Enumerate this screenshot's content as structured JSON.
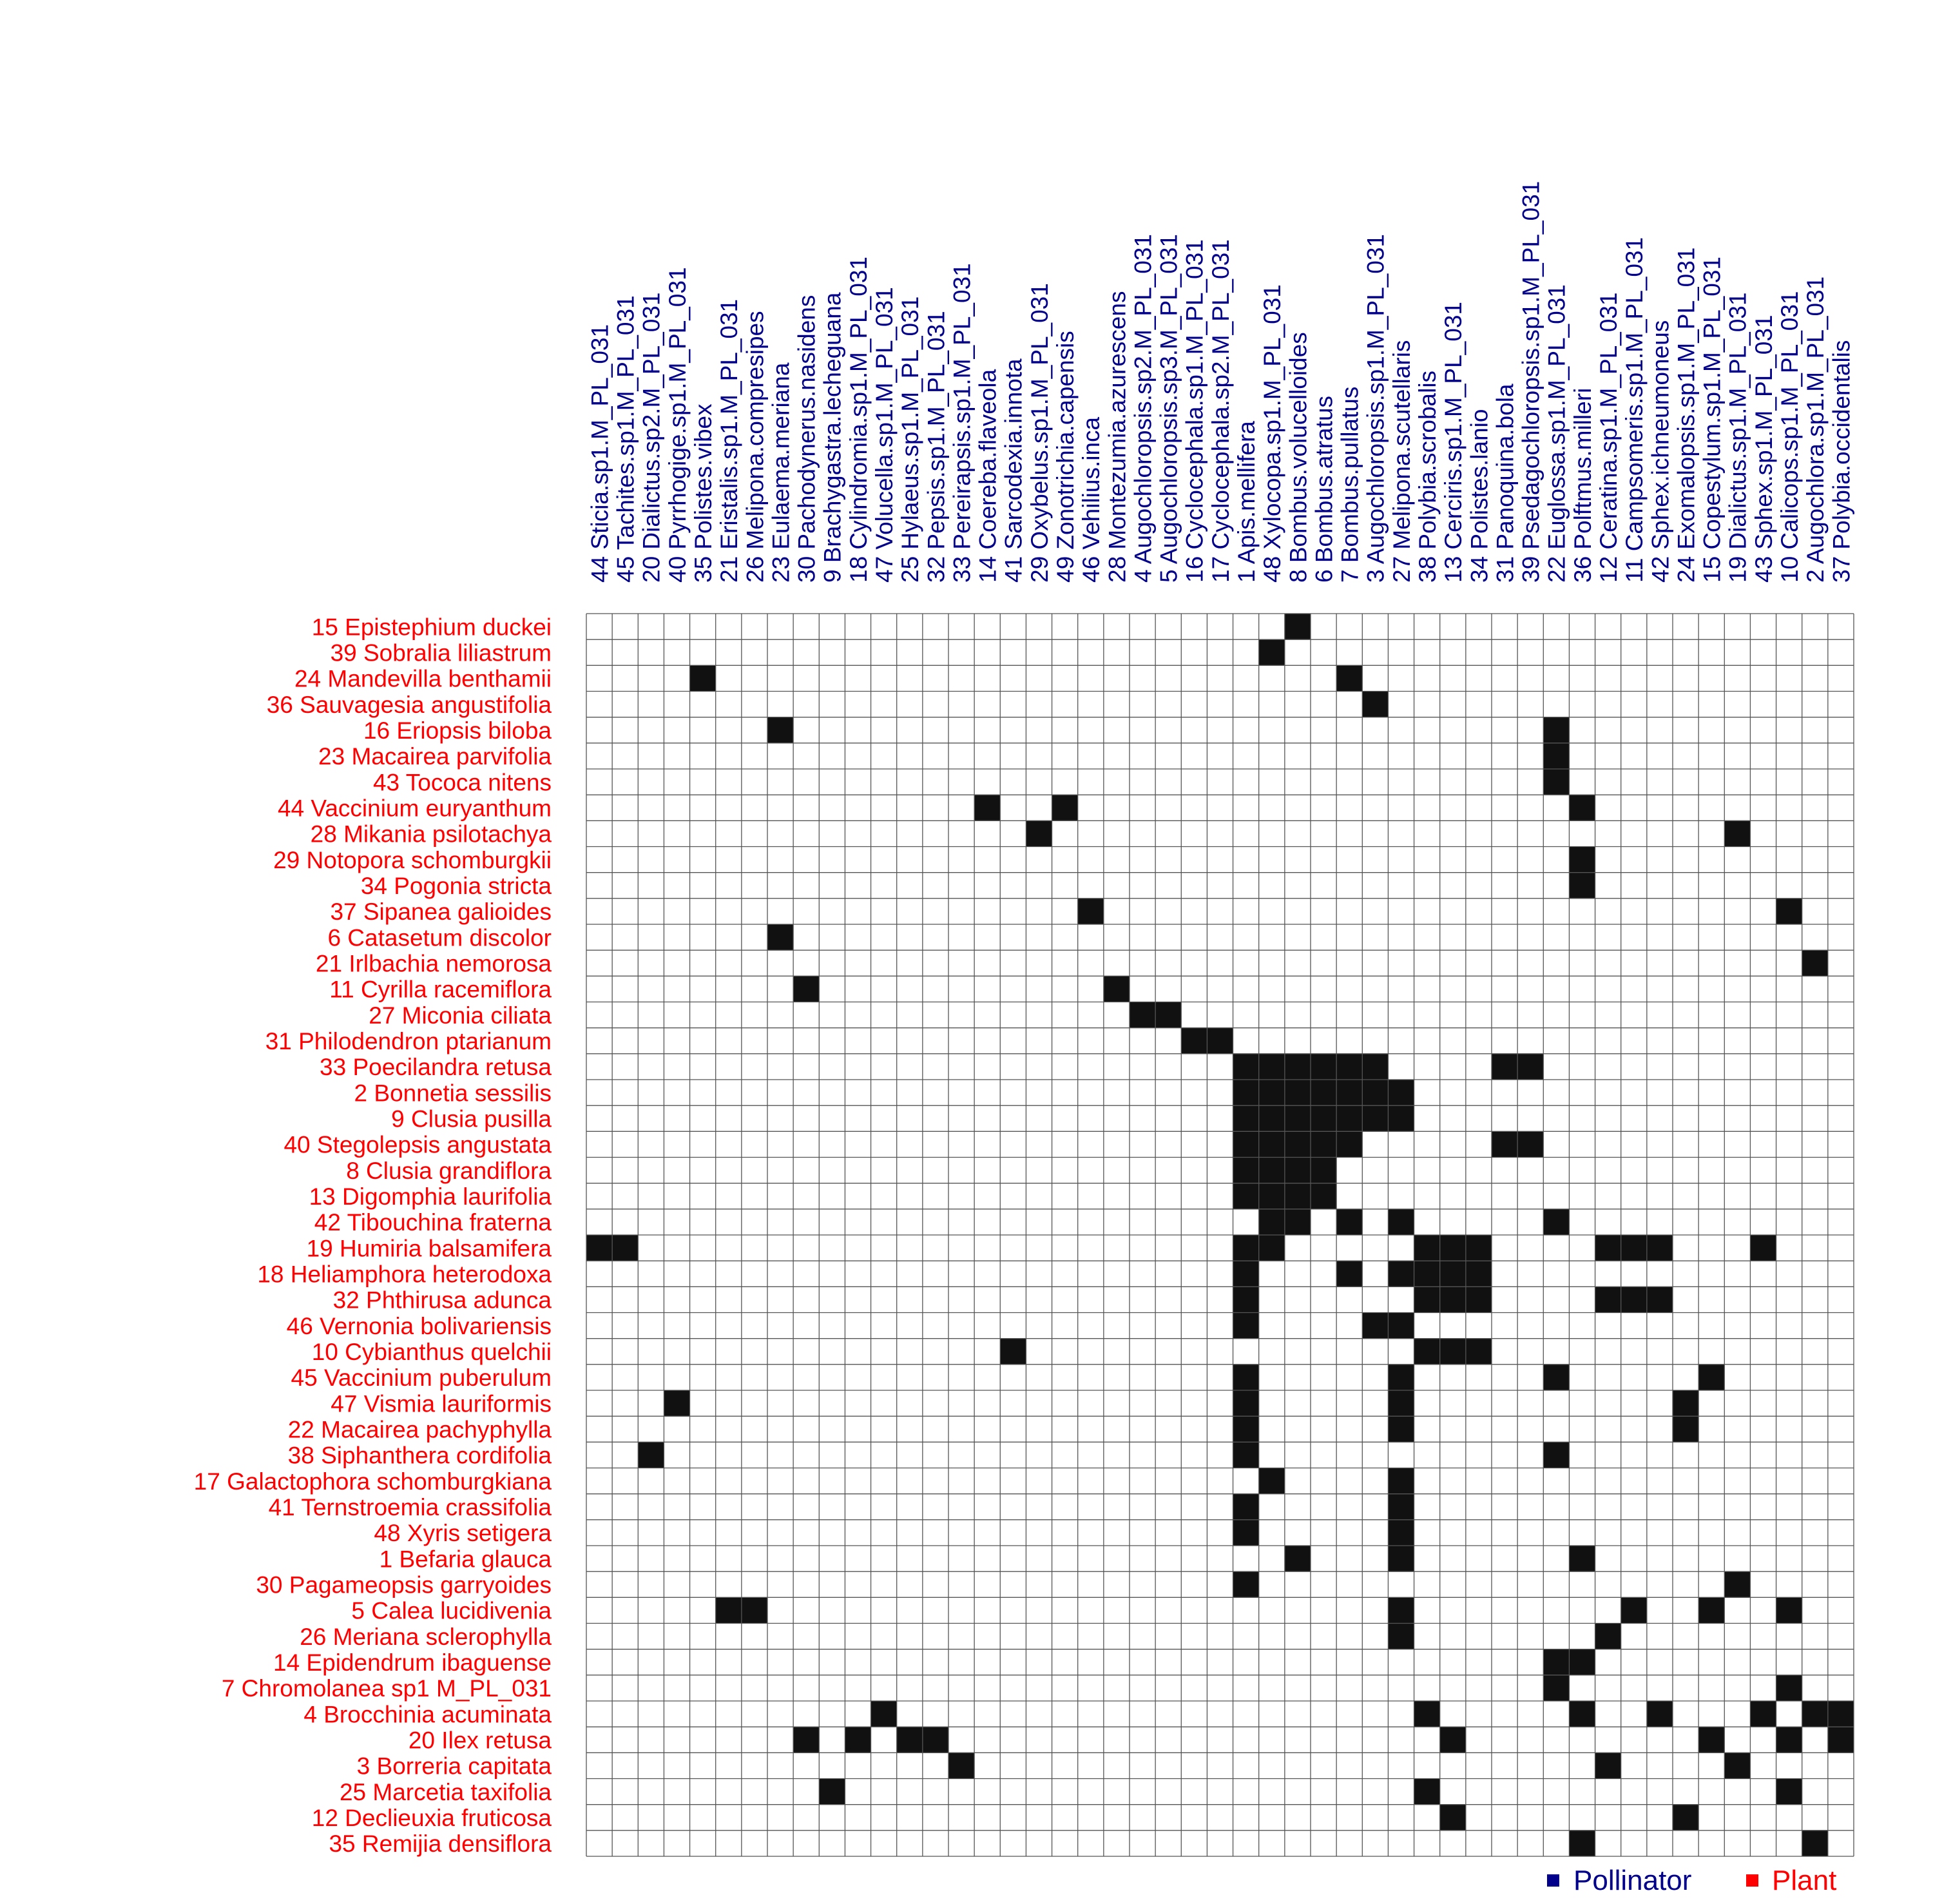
{
  "chart_data": {
    "type": "heatmap",
    "title": "",
    "xlabel": "",
    "ylabel": "",
    "grid": true,
    "legend_position": "bottom-right",
    "colors": {
      "pollinator": "#00008b",
      "plant": "#ff0000",
      "cell_filled": "#111111",
      "cell_empty": "#ffffff",
      "grid": "#555555"
    },
    "legend": [
      {
        "label": "Pollinator",
        "color": "#00008b"
      },
      {
        "label": "Plant",
        "color": "#ff0000"
      }
    ],
    "columns": [
      "44 Sticia.sp1.M_PL_031",
      "45 Tachites.sp1.M_PL_031",
      "20 Dialictus.sp2.M_PL_031",
      "40 Pyrrhogige.sp1.M_PL_031",
      "35 Polistes.vibex",
      "21 Eristalis.sp1.M_PL_031",
      "26 Melipona.compresipes",
      "23 Eulaema.meriana",
      "30 Pachodynerus.nasidens",
      "9 Brachygastra.lecheguana",
      "18 Cylindromia.sp1.M_PL_031",
      "47 Volucella.sp1.M_PL_031",
      "25 Hylaeus.sp1.M_PL_031",
      "32 Pepsis.sp1.M_PL_031",
      "33 Pereirapsis.sp1.M_PL_031",
      "14 Coereba.flaveola",
      "41 Sarcodexia.innota",
      "29 Oxybelus.sp1.M_PL_031",
      "49 Zonotrichia.capensis",
      "46 Vehilius.inca",
      "28 Montezumia.azurescens",
      "4 Augochloropsis.sp2.M_PL_031",
      "5 Augochloropsis.sp3.M_PL_031",
      "16 Cyclocephala.sp1.M_PL_031",
      "17 Cyclocephala.sp2.M_PL_031",
      "1 Apis.mellifera",
      "48 Xylocopa.sp1.M_PL_031",
      "8 Bombus.volucelloides",
      "6 Bombus.atratus",
      "7 Bombus.pullatus",
      "3 Augochloropsis.sp1.M_PL_031",
      "27 Melipona.scutellaris",
      "38 Polybia.scrobalis",
      "13 Cerciris.sp1.M_PL_031",
      "34 Polistes.lanio",
      "31 Panoquina.bola",
      "39 Psedagochloropsis.sp1.M_PL_031",
      "22 Euglossa.sp1.M_PL_031",
      "36 Polftmus.milleri",
      "12 Ceratina.sp1.M_PL_031",
      "11 Campsomeris.sp1.M_PL_031",
      "42 Sphex.ichneumoneus",
      "24 Exomalopsis.sp1.M_PL_031",
      "15 Copestylum.sp1.M_PL_031",
      "19 Dialictus.sp1.M_PL_031",
      "43 Sphex.sp1.M_PL_031",
      "10 Calicops.sp1.M_PL_031",
      "2 Augochlora.sp1.M_PL_031",
      "37 Polybia.occidentalis"
    ],
    "rows": [
      "15 Epistephium duckei",
      "39 Sobralia liliastrum",
      "24 Mandevilla benthamii",
      "36 Sauvagesia angustifolia",
      "16 Eriopsis biloba",
      "23 Macairea parvifolia",
      "43 Tococa nitens",
      "44 Vaccinium euryanthum",
      "28 Mikania psilotachya",
      "29 Notopora schomburgkii",
      "34 Pogonia stricta",
      "37 Sipanea galioides",
      "6 Catasetum discolor",
      "21 Irlbachia nemorosa",
      "11 Cyrilla racemiflora",
      "27 Miconia ciliata",
      "31 Philodendron ptarianum",
      "33 Poecilandra retusa",
      "2 Bonnetia sessilis",
      "9 Clusia pusilla",
      "40 Stegolepsis angustata",
      "8 Clusia grandiflora",
      "13 Digomphia laurifolia",
      "42 Tibouchina fraterna",
      "19 Humiria balsamifera",
      "18 Heliamphora heterodoxa",
      "32 Phthirusa adunca",
      "46 Vernonia bolivariensis",
      "10 Cybianthus quelchii",
      "45 Vaccinium puberulum",
      "47 Vismia lauriformis",
      "22 Macairea pachyphylla",
      "38 Siphanthera cordifolia",
      "17 Galactophora schomburgkiana",
      "41 Ternstroemia crassifolia",
      "48 Xyris setigera",
      "1 Befaria glauca",
      "30 Pagameopsis garryoides",
      "5 Calea lucidivenia",
      "26 Meriana sclerophylla",
      "14 Epidendrum ibaguense",
      "7 Chromolanea sp1 M_PL_031",
      "4 Brocchinia acuminata",
      "20 Ilex retusa",
      "3 Borreria capitata",
      "25 Marcetia taxifolia",
      "12 Declieuxia fruticosa",
      "35 Remijia densiflora"
    ],
    "interactions": [
      [
        0,
        27
      ],
      [
        1,
        26
      ],
      [
        2,
        4
      ],
      [
        2,
        29
      ],
      [
        3,
        30
      ],
      [
        4,
        7
      ],
      [
        4,
        37
      ],
      [
        5,
        37
      ],
      [
        6,
        37
      ],
      [
        7,
        15
      ],
      [
        7,
        18
      ],
      [
        7,
        38
      ],
      [
        8,
        17
      ],
      [
        8,
        44
      ],
      [
        9,
        38
      ],
      [
        10,
        38
      ],
      [
        11,
        19
      ],
      [
        11,
        46
      ],
      [
        12,
        7
      ],
      [
        13,
        47
      ],
      [
        14,
        8
      ],
      [
        14,
        20
      ],
      [
        15,
        21
      ],
      [
        15,
        22
      ],
      [
        16,
        23
      ],
      [
        16,
        24
      ],
      [
        17,
        25
      ],
      [
        17,
        26
      ],
      [
        17,
        27
      ],
      [
        17,
        28
      ],
      [
        17,
        29
      ],
      [
        17,
        30
      ],
      [
        17,
        35
      ],
      [
        17,
        36
      ],
      [
        18,
        25
      ],
      [
        18,
        26
      ],
      [
        18,
        27
      ],
      [
        18,
        28
      ],
      [
        18,
        29
      ],
      [
        18,
        30
      ],
      [
        18,
        31
      ],
      [
        19,
        25
      ],
      [
        19,
        26
      ],
      [
        19,
        27
      ],
      [
        19,
        28
      ],
      [
        19,
        29
      ],
      [
        19,
        30
      ],
      [
        19,
        31
      ],
      [
        20,
        25
      ],
      [
        20,
        26
      ],
      [
        20,
        27
      ],
      [
        20,
        28
      ],
      [
        20,
        29
      ],
      [
        20,
        35
      ],
      [
        20,
        36
      ],
      [
        21,
        25
      ],
      [
        21,
        26
      ],
      [
        21,
        27
      ],
      [
        21,
        28
      ],
      [
        22,
        25
      ],
      [
        22,
        26
      ],
      [
        22,
        27
      ],
      [
        22,
        28
      ],
      [
        23,
        26
      ],
      [
        23,
        27
      ],
      [
        23,
        29
      ],
      [
        23,
        31
      ],
      [
        23,
        37
      ],
      [
        24,
        0
      ],
      [
        24,
        1
      ],
      [
        24,
        25
      ],
      [
        24,
        26
      ],
      [
        24,
        32
      ],
      [
        24,
        33
      ],
      [
        24,
        34
      ],
      [
        24,
        39
      ],
      [
        24,
        40
      ],
      [
        24,
        41
      ],
      [
        24,
        45
      ],
      [
        25,
        25
      ],
      [
        25,
        29
      ],
      [
        25,
        31
      ],
      [
        25,
        32
      ],
      [
        25,
        33
      ],
      [
        25,
        34
      ],
      [
        26,
        25
      ],
      [
        26,
        32
      ],
      [
        26,
        33
      ],
      [
        26,
        34
      ],
      [
        26,
        39
      ],
      [
        26,
        40
      ],
      [
        26,
        41
      ],
      [
        27,
        25
      ],
      [
        27,
        30
      ],
      [
        27,
        31
      ],
      [
        28,
        16
      ],
      [
        28,
        32
      ],
      [
        28,
        33
      ],
      [
        28,
        34
      ],
      [
        29,
        25
      ],
      [
        29,
        31
      ],
      [
        29,
        37
      ],
      [
        29,
        43
      ],
      [
        30,
        3
      ],
      [
        30,
        25
      ],
      [
        30,
        31
      ],
      [
        30,
        42
      ],
      [
        31,
        25
      ],
      [
        31,
        31
      ],
      [
        31,
        42
      ],
      [
        32,
        2
      ],
      [
        32,
        25
      ],
      [
        32,
        37
      ],
      [
        33,
        26
      ],
      [
        33,
        31
      ],
      [
        34,
        25
      ],
      [
        34,
        31
      ],
      [
        35,
        25
      ],
      [
        35,
        31
      ],
      [
        36,
        27
      ],
      [
        36,
        31
      ],
      [
        36,
        38
      ],
      [
        37,
        25
      ],
      [
        37,
        44
      ],
      [
        38,
        5
      ],
      [
        38,
        6
      ],
      [
        38,
        31
      ],
      [
        38,
        40
      ],
      [
        38,
        43
      ],
      [
        38,
        46
      ],
      [
        39,
        31
      ],
      [
        39,
        39
      ],
      [
        40,
        37
      ],
      [
        40,
        38
      ],
      [
        41,
        37
      ],
      [
        41,
        46
      ],
      [
        42,
        11
      ],
      [
        42,
        32
      ],
      [
        42,
        38
      ],
      [
        42,
        41
      ],
      [
        42,
        45
      ],
      [
        42,
        47
      ],
      [
        42,
        48
      ],
      [
        43,
        8
      ],
      [
        43,
        10
      ],
      [
        43,
        12
      ],
      [
        43,
        13
      ],
      [
        43,
        33
      ],
      [
        43,
        43
      ],
      [
        43,
        46
      ],
      [
        43,
        48
      ],
      [
        44,
        14
      ],
      [
        44,
        39
      ],
      [
        44,
        44
      ],
      [
        45,
        9
      ],
      [
        45,
        32
      ],
      [
        45,
        46
      ],
      [
        46,
        33
      ],
      [
        46,
        42
      ],
      [
        47,
        38
      ],
      [
        47,
        47
      ]
    ]
  }
}
